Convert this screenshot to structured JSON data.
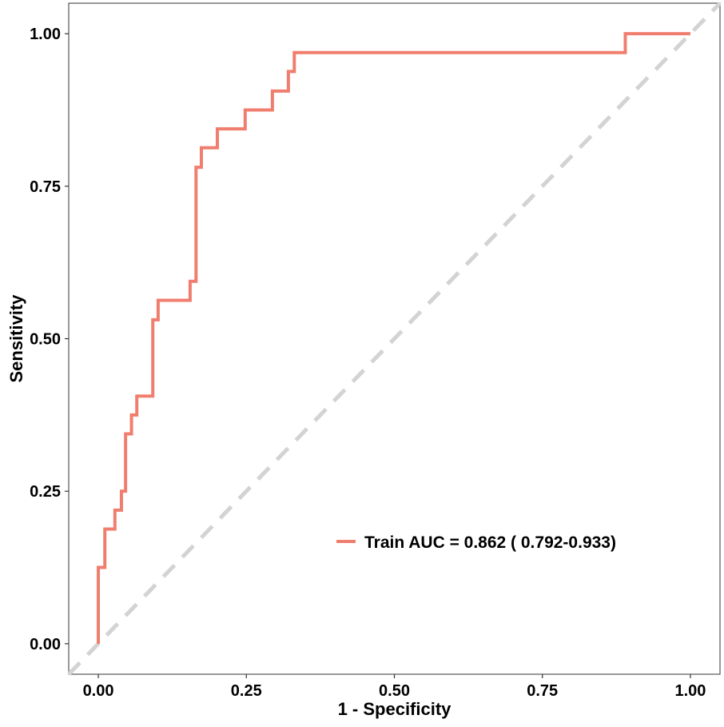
{
  "chart_data": {
    "type": "line",
    "title": "",
    "xlabel": "1 - Specificity",
    "ylabel": "Sensitivity",
    "xlim": [
      -0.05,
      1.05
    ],
    "ylim": [
      -0.05,
      1.05
    ],
    "x_ticks": [
      0,
      0.25,
      0.5,
      0.75,
      1
    ],
    "x_tick_labels": [
      "0.00",
      "0.25",
      "0.50",
      "0.75",
      "1.00"
    ],
    "y_ticks": [
      0,
      0.25,
      0.5,
      0.75,
      1
    ],
    "y_tick_labels": [
      "0.00",
      "0.25",
      "0.50",
      "0.75",
      "1.00"
    ],
    "grid": false,
    "legend_position": "lower-right",
    "series": [
      {
        "name": "Train AUC = 0.862 ( 0.792-0.933)",
        "color": "#F07E6E",
        "step": true,
        "x": [
          0.0,
          0.0,
          0.011,
          0.011,
          0.028,
          0.028,
          0.039,
          0.039,
          0.046,
          0.046,
          0.056,
          0.056,
          0.065,
          0.065,
          0.092,
          0.092,
          0.101,
          0.101,
          0.155,
          0.155,
          0.165,
          0.165,
          0.174,
          0.174,
          0.201,
          0.201,
          0.248,
          0.248,
          0.294,
          0.294,
          0.321,
          0.321,
          0.331,
          0.331,
          0.89,
          0.89,
          1.0
        ],
        "y": [
          0.0,
          0.125,
          0.125,
          0.188,
          0.188,
          0.219,
          0.219,
          0.25,
          0.25,
          0.344,
          0.344,
          0.375,
          0.375,
          0.406,
          0.406,
          0.531,
          0.531,
          0.563,
          0.563,
          0.594,
          0.594,
          0.781,
          0.781,
          0.813,
          0.813,
          0.844,
          0.844,
          0.875,
          0.875,
          0.906,
          0.906,
          0.938,
          0.938,
          0.969,
          0.969,
          1.0,
          1.0
        ]
      }
    ],
    "reference_line": {
      "x": [
        -0.05,
        1.05
      ],
      "y": [
        -0.05,
        1.05
      ],
      "color": "#D3D3D3",
      "style": "dashed"
    }
  }
}
